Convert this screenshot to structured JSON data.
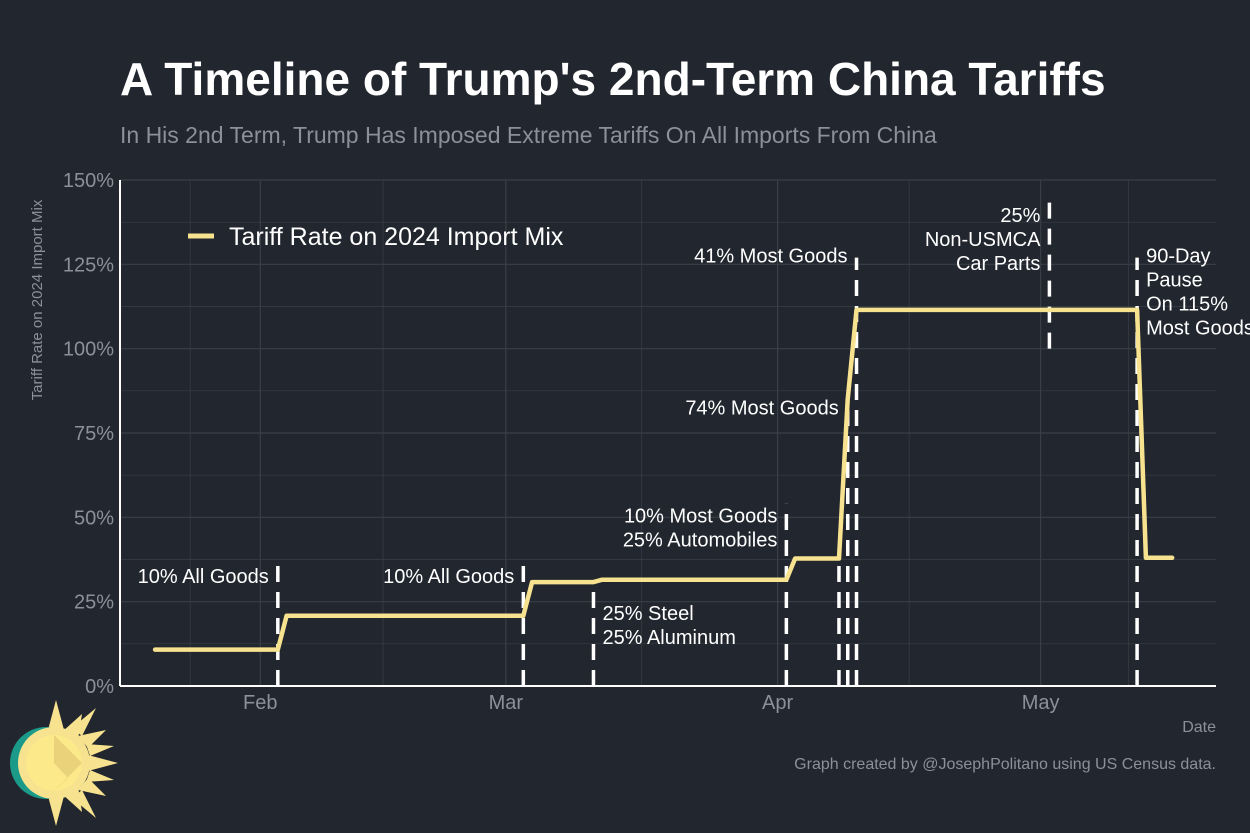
{
  "title": "A Timeline of Trump's 2nd-Term China Tariffs",
  "subtitle": "In His 2nd Term, Trump Has Imposed Extreme Tariffs On All Imports From China",
  "caption": "Graph created by @JosephPolitano using US Census data.",
  "colors": {
    "background": "#22262e",
    "line": "#f7e28f",
    "grid": "#3a3f48",
    "text": "#ffffff",
    "muted": "#8c9099"
  },
  "chart_data": {
    "type": "line",
    "xlabel": "Date",
    "ylabel": "Tariff Rate on 2024 Import Mix",
    "xlim": [
      "2025-01-16",
      "2025-05-21"
    ],
    "ylim": [
      0,
      150
    ],
    "x_ticks": [
      {
        "date": "2025-02-01",
        "label": "Feb"
      },
      {
        "date": "2025-03-01",
        "label": "Mar"
      },
      {
        "date": "2025-04-01",
        "label": "Apr"
      },
      {
        "date": "2025-05-01",
        "label": "May"
      }
    ],
    "y_ticks": [
      {
        "value": 0,
        "label": "0%"
      },
      {
        "value": 25,
        "label": "25%"
      },
      {
        "value": 50,
        "label": "50%"
      },
      {
        "value": 75,
        "label": "75%"
      },
      {
        "value": 100,
        "label": "100%"
      },
      {
        "value": 125,
        "label": "125%"
      },
      {
        "value": 150,
        "label": "150%"
      }
    ],
    "grid": true,
    "legend": {
      "position": "top-left",
      "label": "Tariff Rate on 2024 Import Mix"
    },
    "series": [
      {
        "name": "Tariff Rate on 2024 Import Mix",
        "points": [
          {
            "x": "2025-01-20",
            "y": 10.8
          },
          {
            "x": "2025-02-03",
            "y": 10.8
          },
          {
            "x": "2025-02-04",
            "y": 20.8
          },
          {
            "x": "2025-03-03",
            "y": 20.8
          },
          {
            "x": "2025-03-04",
            "y": 30.8
          },
          {
            "x": "2025-03-11",
            "y": 30.8
          },
          {
            "x": "2025-03-12",
            "y": 31.5
          },
          {
            "x": "2025-04-02",
            "y": 31.5
          },
          {
            "x": "2025-04-03",
            "y": 37.8
          },
          {
            "x": "2025-04-08",
            "y": 37.8
          },
          {
            "x": "2025-04-09",
            "y": 85.0
          },
          {
            "x": "2025-04-10",
            "y": 111.5
          },
          {
            "x": "2025-05-12",
            "y": 111.5
          },
          {
            "x": "2025-05-13",
            "y": 38.0
          },
          {
            "x": "2025-05-16",
            "y": 38.0
          }
        ]
      }
    ],
    "events": [
      {
        "x": "2025-02-03",
        "y_from": 0,
        "y_to": 36,
        "label_lines": [
          "10% All Goods"
        ],
        "label_side": "left",
        "label_y": 30.5
      },
      {
        "x": "2025-03-03",
        "y_from": 0,
        "y_to": 36,
        "label_lines": [
          "10% All Goods"
        ],
        "label_side": "left",
        "label_y": 30.5
      },
      {
        "x": "2025-03-11",
        "y_from": 0,
        "y_to": 30,
        "label_lines": [
          "25% Steel",
          "25% Aluminum"
        ],
        "label_side": "right",
        "label_y": 19.5
      },
      {
        "x": "2025-04-02",
        "y_from": 0,
        "y_to": 54,
        "label_lines": [
          "10% Most Goods",
          "25% Automobiles"
        ],
        "label_side": "left",
        "label_y": 48.5
      },
      {
        "x": "2025-04-08",
        "y_from": 0,
        "y_to": 38,
        "label_lines": [],
        "label_side": "left",
        "label_y": 0
      },
      {
        "x": "2025-04-09",
        "y_from": 0,
        "y_to": 82,
        "label_lines": [
          "74% Most Goods"
        ],
        "label_side": "left",
        "label_y": 80.5
      },
      {
        "x": "2025-04-10",
        "y_from": 0,
        "y_to": 127,
        "label_lines": [
          "41% Most Goods"
        ],
        "label_side": "left",
        "label_y": 125.5
      },
      {
        "x": "2025-05-02",
        "y_from": 100,
        "y_to": 146,
        "label_lines": [
          "25%",
          "Non-USMCA",
          "Car Parts"
        ],
        "label_side": "left",
        "label_y": 137.5
      },
      {
        "x": "2025-05-12",
        "y_from": 0,
        "y_to": 127,
        "label_lines": [
          "90-Day",
          "Pause",
          "On 115%",
          "Most Goods"
        ],
        "label_side": "right",
        "label_y": 125.5
      }
    ]
  }
}
